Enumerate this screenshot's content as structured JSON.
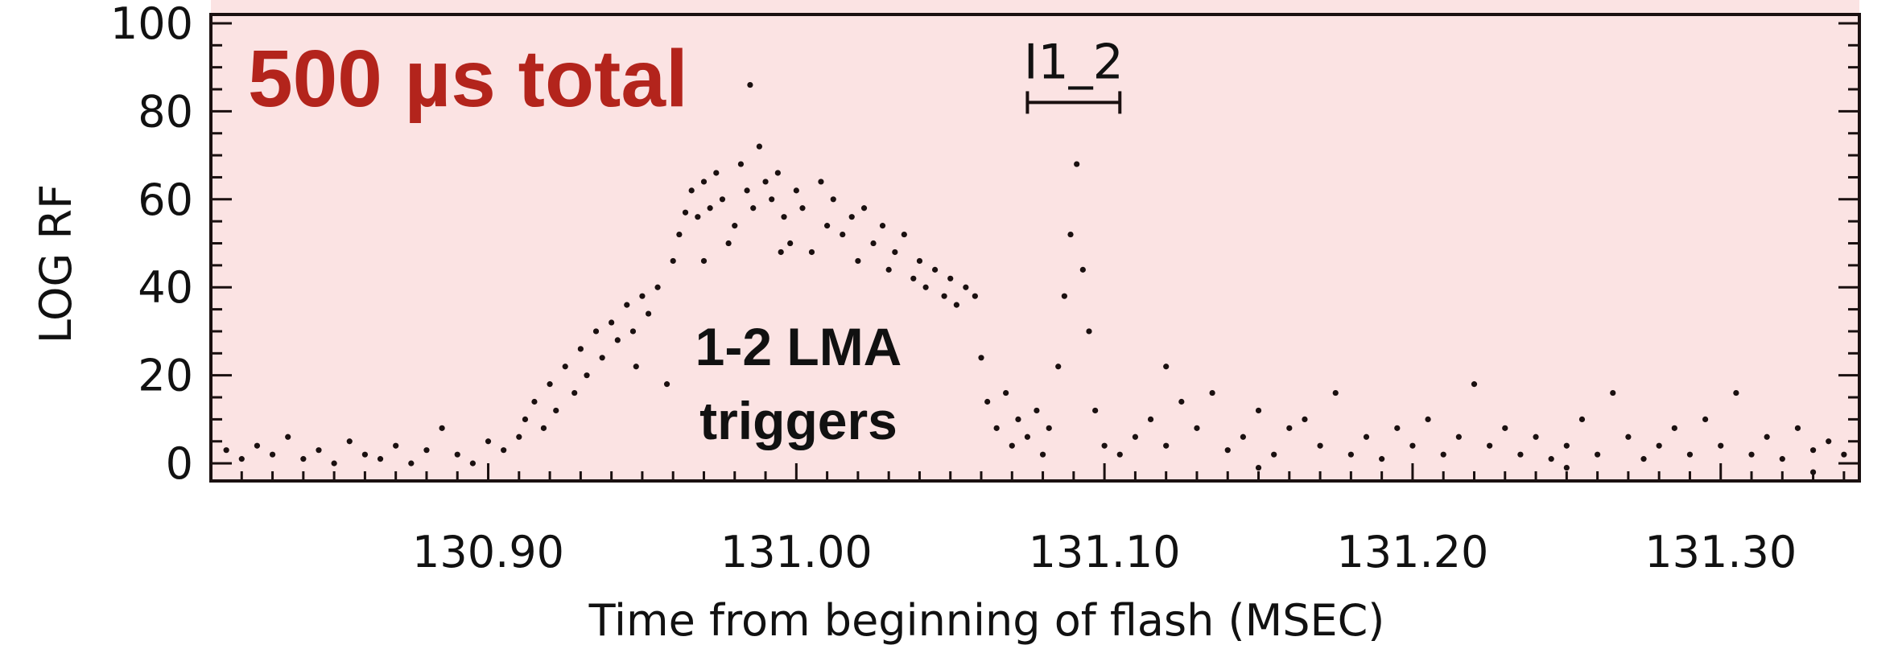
{
  "chart_data": {
    "type": "scatter",
    "headline": "500 µs total",
    "annotation": "1-2 LMA triggers",
    "annotation_lines": [
      "1-2 LMA",
      "triggers"
    ],
    "xlabel": "Time from beginning of flash (MSEC)",
    "ylabel": "LOG RF",
    "xlim": [
      130.81,
      131.345
    ],
    "ylim": [
      -4,
      102
    ],
    "x_ticks": [
      "130.90",
      "131.00",
      "131.10",
      "131.20",
      "131.30"
    ],
    "y_ticks": [
      "0",
      "20",
      "40",
      "60",
      "80",
      "100"
    ],
    "bracket": {
      "label": "I1_2",
      "x_start": 131.075,
      "x_end": 131.105,
      "y": 82
    },
    "series": [
      {
        "points": [
          [
            130.815,
            3
          ],
          [
            130.82,
            1
          ],
          [
            130.825,
            4
          ],
          [
            130.83,
            2
          ],
          [
            130.835,
            6
          ],
          [
            130.84,
            1
          ],
          [
            130.845,
            3
          ],
          [
            130.85,
            0
          ],
          [
            130.855,
            5
          ],
          [
            130.86,
            2
          ],
          [
            130.865,
            1
          ],
          [
            130.87,
            4
          ],
          [
            130.875,
            0
          ],
          [
            130.88,
            3
          ],
          [
            130.885,
            8
          ],
          [
            130.89,
            2
          ],
          [
            130.895,
            0
          ],
          [
            130.9,
            5
          ],
          [
            130.905,
            3
          ],
          [
            130.91,
            6
          ],
          [
            130.912,
            10
          ],
          [
            130.915,
            14
          ],
          [
            130.918,
            8
          ],
          [
            130.92,
            18
          ],
          [
            130.922,
            12
          ],
          [
            130.925,
            22
          ],
          [
            130.928,
            16
          ],
          [
            130.93,
            26
          ],
          [
            130.932,
            20
          ],
          [
            130.935,
            30
          ],
          [
            130.937,
            24
          ],
          [
            130.94,
            32
          ],
          [
            130.942,
            28
          ],
          [
            130.945,
            36
          ],
          [
            130.947,
            30
          ],
          [
            130.95,
            38
          ],
          [
            130.952,
            34
          ],
          [
            130.955,
            40
          ],
          [
            130.948,
            22
          ],
          [
            130.958,
            18
          ],
          [
            130.96,
            46
          ],
          [
            130.962,
            52
          ],
          [
            130.964,
            57
          ],
          [
            130.966,
            62
          ],
          [
            130.968,
            56
          ],
          [
            130.97,
            64
          ],
          [
            130.972,
            58
          ],
          [
            130.974,
            66
          ],
          [
            130.976,
            60
          ],
          [
            130.978,
            50
          ],
          [
            130.98,
            54
          ],
          [
            130.982,
            68
          ],
          [
            130.984,
            62
          ],
          [
            130.986,
            58
          ],
          [
            130.988,
            72
          ],
          [
            130.99,
            64
          ],
          [
            130.992,
            60
          ],
          [
            130.994,
            66
          ],
          [
            130.996,
            56
          ],
          [
            130.998,
            50
          ],
          [
            131.0,
            62
          ],
          [
            131.002,
            58
          ],
          [
            131.005,
            48
          ],
          [
            131.008,
            64
          ],
          [
            131.01,
            54
          ],
          [
            131.012,
            60
          ],
          [
            131.015,
            52
          ],
          [
            131.018,
            56
          ],
          [
            131.02,
            46
          ],
          [
            131.022,
            58
          ],
          [
            131.025,
            50
          ],
          [
            131.028,
            54
          ],
          [
            131.03,
            44
          ],
          [
            131.032,
            48
          ],
          [
            131.035,
            52
          ],
          [
            131.038,
            42
          ],
          [
            131.04,
            46
          ],
          [
            131.042,
            40
          ],
          [
            131.045,
            44
          ],
          [
            131.048,
            38
          ],
          [
            131.05,
            42
          ],
          [
            131.052,
            36
          ],
          [
            131.055,
            40
          ],
          [
            131.058,
            38
          ],
          [
            130.985,
            86
          ],
          [
            130.97,
            46
          ],
          [
            130.995,
            48
          ],
          [
            131.06,
            24
          ],
          [
            131.062,
            14
          ],
          [
            131.065,
            8
          ],
          [
            131.068,
            16
          ],
          [
            131.07,
            4
          ],
          [
            131.072,
            10
          ],
          [
            131.075,
            6
          ],
          [
            131.078,
            12
          ],
          [
            131.08,
            2
          ],
          [
            131.082,
            8
          ],
          [
            131.085,
            22
          ],
          [
            131.087,
            38
          ],
          [
            131.089,
            52
          ],
          [
            131.091,
            68
          ],
          [
            131.093,
            44
          ],
          [
            131.095,
            30
          ],
          [
            131.097,
            12
          ],
          [
            131.1,
            4
          ],
          [
            131.105,
            2
          ],
          [
            131.11,
            6
          ],
          [
            131.115,
            10
          ],
          [
            131.12,
            4
          ],
          [
            131.125,
            14
          ],
          [
            131.13,
            8
          ],
          [
            131.135,
            16
          ],
          [
            131.14,
            3
          ],
          [
            131.145,
            6
          ],
          [
            131.15,
            12
          ],
          [
            131.155,
            2
          ],
          [
            131.16,
            8
          ],
          [
            131.165,
            10
          ],
          [
            131.17,
            4
          ],
          [
            131.175,
            16
          ],
          [
            131.18,
            2
          ],
          [
            131.185,
            6
          ],
          [
            131.19,
            1
          ],
          [
            131.195,
            8
          ],
          [
            131.2,
            4
          ],
          [
            131.205,
            10
          ],
          [
            131.21,
            2
          ],
          [
            131.215,
            6
          ],
          [
            131.22,
            18
          ],
          [
            131.225,
            4
          ],
          [
            131.23,
            8
          ],
          [
            131.235,
            2
          ],
          [
            131.24,
            6
          ],
          [
            131.245,
            1
          ],
          [
            131.25,
            4
          ],
          [
            131.255,
            10
          ],
          [
            131.26,
            2
          ],
          [
            131.265,
            16
          ],
          [
            131.27,
            6
          ],
          [
            131.275,
            1
          ],
          [
            131.28,
            4
          ],
          [
            131.285,
            8
          ],
          [
            131.29,
            2
          ],
          [
            131.295,
            10
          ],
          [
            131.3,
            4
          ],
          [
            131.305,
            16
          ],
          [
            131.31,
            2
          ],
          [
            131.315,
            6
          ],
          [
            131.32,
            1
          ],
          [
            131.325,
            8
          ],
          [
            131.33,
            3
          ],
          [
            131.335,
            5
          ],
          [
            131.34,
            2
          ],
          [
            131.12,
            22
          ],
          [
            131.15,
            -1
          ],
          [
            131.25,
            -1
          ],
          [
            131.33,
            -2
          ]
        ]
      }
    ],
    "colors": {
      "background": "#fbe3e3",
      "headline": "#b3241c",
      "points": "#1a1010",
      "axes": "#1a1010"
    }
  }
}
